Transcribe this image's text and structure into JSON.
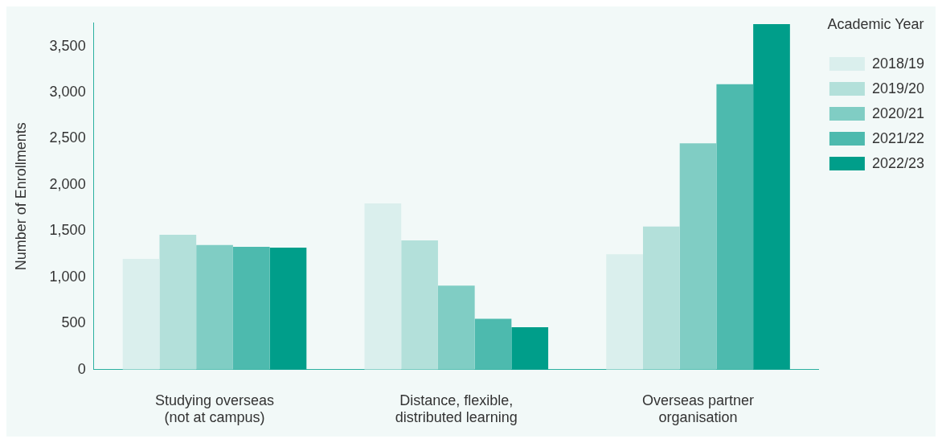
{
  "chart_data": {
    "type": "bar",
    "ylabel": "Number of Enrollments",
    "legend_title": "Academic Year",
    "legend": "top right",
    "grid": false,
    "categories": [
      "Studying overseas (not at campus)",
      "Distance, flexible, distributed learning",
      "Overseas partner organisation"
    ],
    "ylim": [
      0,
      3750
    ],
    "yticks": [
      {
        "value": 0,
        "label": "0"
      },
      {
        "value": 500,
        "label": "500"
      },
      {
        "value": 1000,
        "label": "1,000"
      },
      {
        "value": 1500,
        "label": "1,500"
      },
      {
        "value": 2000,
        "label": "2,000"
      },
      {
        "value": 2500,
        "label": "2,500"
      },
      {
        "value": 3000,
        "label": "3,000"
      },
      {
        "value": 3500,
        "label": "3,500"
      }
    ],
    "series": [
      {
        "name": "2018/19",
        "color": "#daefed",
        "values": [
          1200,
          1800,
          1250
        ]
      },
      {
        "name": "2019/20",
        "color": "#b3e0da",
        "values": [
          1460,
          1400,
          1550
        ]
      },
      {
        "name": "2020/21",
        "color": "#80cdc4",
        "values": [
          1350,
          910,
          2450
        ]
      },
      {
        "name": "2021/22",
        "color": "#4dbaae",
        "values": [
          1330,
          550,
          3090
        ]
      },
      {
        "name": "2022/23",
        "color": "#009e8a",
        "values": [
          1320,
          460,
          3740
        ]
      }
    ]
  }
}
